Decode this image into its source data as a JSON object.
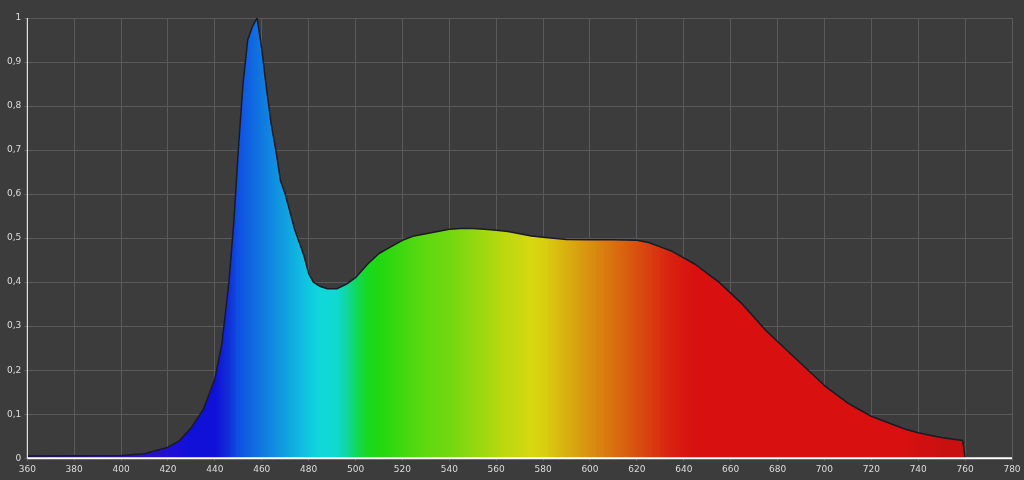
{
  "chart_data": {
    "type": "area",
    "grid": true,
    "marker": "none",
    "xlim": [
      360,
      780
    ],
    "xticks": [
      360,
      380,
      400,
      420,
      440,
      460,
      480,
      500,
      520,
      540,
      560,
      580,
      600,
      620,
      640,
      660,
      680,
      700,
      720,
      740,
      760,
      780
    ],
    "ylim": [
      0,
      1
    ],
    "yticks": [
      0,
      {
        "value": 0.1,
        "label": "0,1"
      },
      {
        "value": 0.2,
        "label": "0,2"
      },
      {
        "value": 0.3,
        "label": "0,3"
      },
      {
        "value": 0.4,
        "label": "0,4"
      },
      {
        "value": 0.5,
        "label": "0,5"
      },
      {
        "value": 0.6,
        "label": "0,6"
      },
      {
        "value": 0.7,
        "label": "0,7"
      },
      {
        "value": 0.8,
        "label": "0,8"
      },
      {
        "value": 0.9,
        "label": "0,9"
      },
      1
    ],
    "series": [
      {
        "color": "#1a1a24",
        "x": [
          360,
          400,
          410,
          420,
          425,
          430,
          435,
          440,
          443,
          446,
          448,
          450,
          452,
          454,
          456,
          458,
          460,
          462,
          464,
          466,
          468,
          470,
          472,
          474,
          476,
          478,
          480,
          482,
          485,
          488,
          492,
          496,
          500,
          505,
          510,
          515,
          520,
          525,
          530,
          535,
          540,
          545,
          550,
          555,
          560,
          565,
          570,
          575,
          580,
          590,
          600,
          610,
          620,
          625,
          630,
          635,
          640,
          645,
          650,
          655,
          660,
          665,
          670,
          675,
          680,
          685,
          690,
          695,
          700,
          705,
          710,
          715,
          720,
          725,
          730,
          735,
          740,
          745,
          750,
          755,
          759,
          760
        ],
        "values": [
          0.005,
          0.006,
          0.01,
          0.025,
          0.04,
          0.07,
          0.11,
          0.18,
          0.26,
          0.4,
          0.53,
          0.7,
          0.85,
          0.95,
          0.98,
          1.0,
          0.93,
          0.84,
          0.76,
          0.7,
          0.63,
          0.6,
          0.56,
          0.52,
          0.49,
          0.46,
          0.42,
          0.4,
          0.39,
          0.385,
          0.385,
          0.395,
          0.41,
          0.44,
          0.465,
          0.48,
          0.495,
          0.505,
          0.51,
          0.515,
          0.52,
          0.522,
          0.522,
          0.52,
          0.518,
          0.515,
          0.51,
          0.505,
          0.502,
          0.497,
          0.496,
          0.496,
          0.495,
          0.49,
          0.48,
          0.47,
          0.455,
          0.44,
          0.42,
          0.4,
          0.375,
          0.35,
          0.32,
          0.29,
          0.265,
          0.24,
          0.215,
          0.19,
          0.165,
          0.145,
          0.125,
          0.11,
          0.095,
          0.085,
          0.075,
          0.065,
          0.058,
          0.052,
          0.047,
          0.043,
          0.04,
          0
        ],
        "colors": [
          "#3a10b0",
          "#3010c0",
          "#2810c8",
          "#2010d0",
          "#1810d8",
          "#1010d8",
          "#1010d8",
          "#1010d8",
          "#1020d8",
          "#1030d8",
          "#1040dc",
          "#1050e0",
          "#1058e0",
          "#1060e0",
          "#1068e0",
          "#1070e0",
          "#1078e0",
          "#1080e0",
          "#1088e0",
          "#1090e0",
          "#1098e0",
          "#10a0e0",
          "#10a8e0",
          "#10b0e0",
          "#10b8e0",
          "#10c0e0",
          "#10c8e0",
          "#10d0e0",
          "#10d8d8",
          "#10d8d8",
          "#10d8d0",
          "#10d8a0",
          "#10d860",
          "#18d820",
          "#20d810",
          "#30d810",
          "#40d810",
          "#50d810",
          "#60d810",
          "#68d810",
          "#70d810",
          "#80d810",
          "#90d810",
          "#a0d810",
          "#b0d810",
          "#c0d810",
          "#c8d810",
          "#d8d810",
          "#d8d010",
          "#d8b010",
          "#d89010",
          "#d87010",
          "#d85010",
          "#d84010",
          "#d83010",
          "#d82010",
          "#d81810",
          "#d81010",
          "#d81010",
          "#d81010",
          "#d81010",
          "#d81010",
          "#d81010",
          "#d81010",
          "#d81010",
          "#d81010",
          "#d81010",
          "#d81010",
          "#d81010",
          "#d81010",
          "#d81010",
          "#d81010",
          "#d81010",
          "#d81010",
          "#d81010",
          "#d81010",
          "#d01010",
          "#d01010",
          "#c81010",
          "#c81010",
          "#c81010",
          "#c81010"
        ]
      }
    ]
  }
}
